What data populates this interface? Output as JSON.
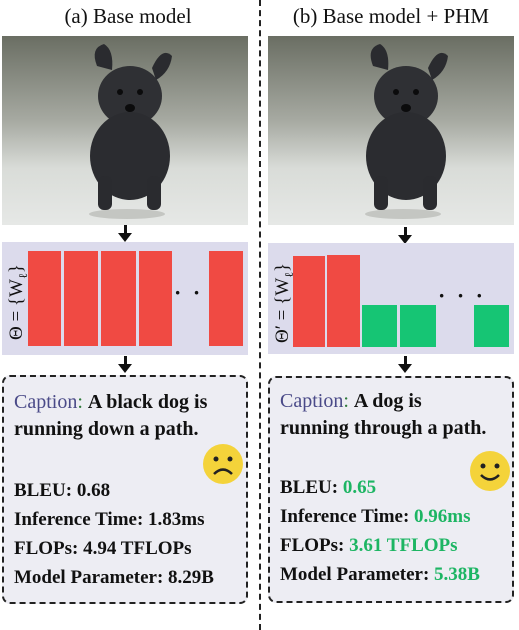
{
  "left": {
    "title": "(a) Base model",
    "theta_label": "Θ = {W",
    "theta_sub": "ℓ",
    "theta_close": "}",
    "dots": "· · ·",
    "caption_label": "Caption",
    "caption_colon": ":",
    "caption_line1": "A black dog is",
    "caption_line2": "running down a path.",
    "metrics": {
      "bleu_label": "BLEU:",
      "bleu_value": "0.68",
      "time_label": "Inference Time:",
      "time_value": "1.83ms",
      "flops_label": "FLOPs:",
      "flops_value": "4.94 TFLOPs",
      "params_label": "Model Parameter:",
      "params_value": "8.29B"
    },
    "face": "sad-face-icon"
  },
  "right": {
    "title": "(b) Base model + PHM",
    "theta_label": "Θ′ = {W",
    "theta_sub": "ℓ",
    "theta_close": "}",
    "dots": "· · ·",
    "caption_label": "Caption",
    "caption_colon": ":",
    "caption_line1": "A dog is",
    "caption_line2": "running through a path.",
    "metrics": {
      "bleu_label": "BLEU:",
      "bleu_value": "0.65",
      "time_label": "Inference Time:",
      "time_value": "0.96ms",
      "flops_label": "FLOPs:",
      "flops_value": "3.61 TFLOPs",
      "params_label": "Model Parameter:",
      "params_value": "5.38B"
    },
    "face": "happy-face-icon"
  },
  "colors": {
    "red": "#f04a43",
    "green": "#16c574",
    "panel": "#dcdbec",
    "improved_value": "#1db563"
  }
}
